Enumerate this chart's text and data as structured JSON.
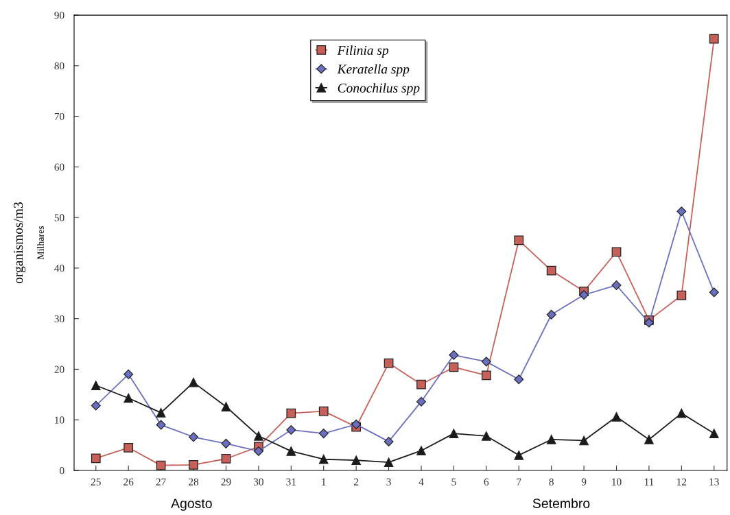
{
  "chart_data": {
    "type": "line",
    "ylabel": "organismos/m3",
    "categories": [
      "25",
      "26",
      "27",
      "28",
      "29",
      "30",
      "31",
      "1",
      "2",
      "3",
      "4",
      "5",
      "6",
      "7",
      "8",
      "9",
      "10",
      "11",
      "12",
      "13"
    ],
    "series": [
      {
        "name": "Filinia sp",
        "color": "#c8605a",
        "marker": "square",
        "values": [
          2.4,
          4.5,
          1.0,
          1.1,
          2.3,
          4.7,
          11.3,
          11.7,
          8.6,
          21.2,
          17.0,
          20.4,
          18.8,
          45.5,
          39.5,
          35.4,
          43.2,
          29.7,
          34.6,
          85.3
        ]
      },
      {
        "name": "Keratella spp",
        "color": "#6a6fc0",
        "marker": "diamond",
        "values": [
          12.8,
          19.0,
          9.0,
          6.6,
          5.3,
          3.8,
          8.0,
          7.3,
          9.1,
          5.7,
          13.6,
          22.8,
          21.5,
          18.0,
          30.8,
          34.7,
          36.6,
          29.2,
          51.2,
          35.2
        ]
      },
      {
        "name": "Conochilus spp",
        "color": "#1a1a1a",
        "marker": "triangle",
        "values": [
          16.8,
          14.3,
          11.4,
          17.4,
          12.6,
          6.8,
          3.8,
          2.2,
          2.0,
          1.6,
          3.9,
          7.3,
          6.8,
          3.0,
          6.1,
          5.9,
          10.6,
          6.1,
          11.3,
          7.3
        ]
      }
    ],
    "ylim": [
      0,
      90
    ],
    "yticks": [
      0,
      10,
      20,
      30,
      40,
      50,
      60,
      70,
      80,
      90
    ],
    "annotations": [
      "Milhares",
      "Agosto",
      "Setembro"
    ],
    "legend": "top",
    "grid": false,
    "line_style": "solid"
  }
}
